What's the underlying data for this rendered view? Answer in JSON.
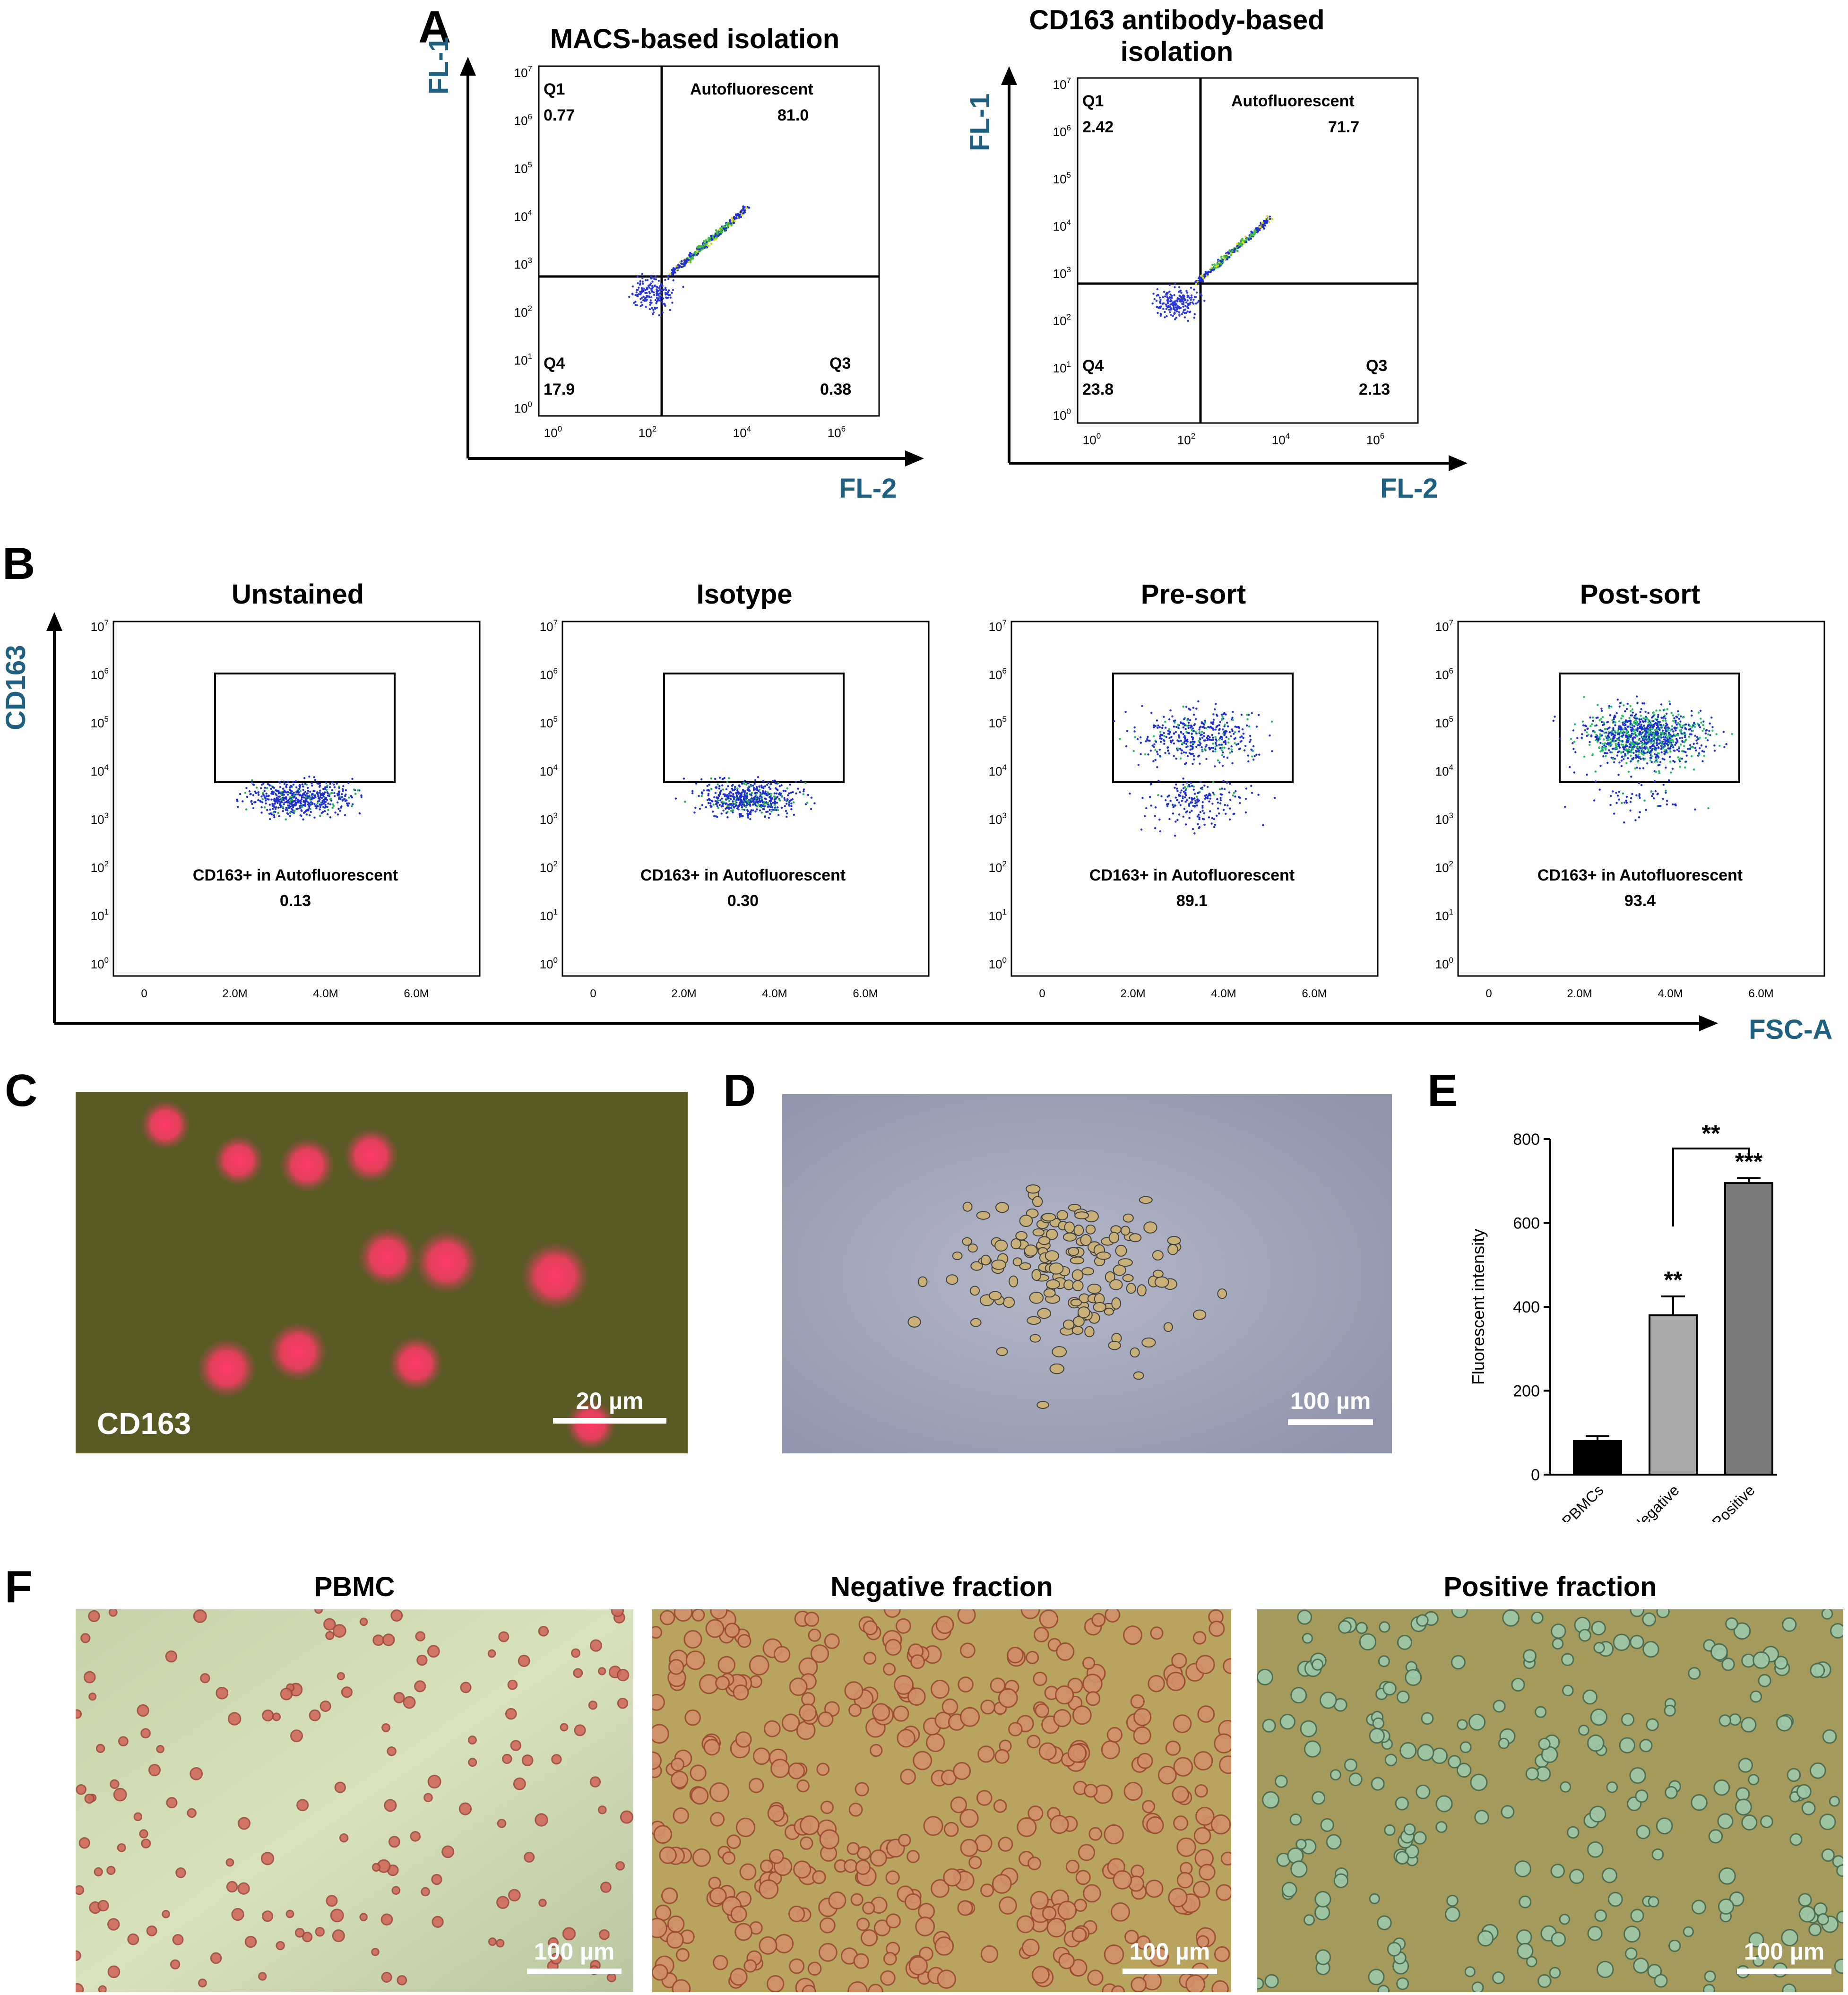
{
  "panels": {
    "A": {
      "letter": "A",
      "x_axis_name": "FL-2",
      "y_axis_name": "FL-1",
      "plots": [
        {
          "title": "MACS-based isolation",
          "q1_label": "Q1",
          "q1": "0.77",
          "q2_label": "Autofluorescent",
          "q2": "81.0",
          "q3_label": "Q3",
          "q3": "0.38",
          "q4_label": "Q4",
          "q4": "17.9"
        },
        {
          "title": "CD163 antibody-based isolation",
          "q1_label": "Q1",
          "q1": "2.42",
          "q2_label": "Autofluorescent",
          "q2": "71.7",
          "q3_label": "Q3",
          "q3": "2.13",
          "q4_label": "Q4",
          "q4": "23.8"
        }
      ],
      "x_ticks": [
        "10",
        "10",
        "10",
        "10"
      ],
      "x_tick_exps": [
        "0",
        "2",
        "4",
        "6"
      ],
      "y_ticks": [
        "10",
        "10",
        "10",
        "10",
        "10",
        "10",
        "10",
        "10"
      ],
      "y_tick_exps": [
        "7",
        "6",
        "5",
        "4",
        "3",
        "2",
        "1",
        "0"
      ]
    },
    "B": {
      "letter": "B",
      "x_axis_name": "FSC-A",
      "y_axis_name": "CD163",
      "gate_label": "CD163+ in Autofluorescent",
      "plots": [
        {
          "title": "Unstained",
          "value": "0.13"
        },
        {
          "title": "Isotype",
          "value": "0.30"
        },
        {
          "title": "Pre-sort",
          "value": "89.1"
        },
        {
          "title": "Post-sort",
          "value": "93.4"
        }
      ],
      "x_ticks": [
        "0",
        "2.0M",
        "4.0M",
        "6.0M"
      ],
      "y_ticks": [
        "10",
        "10",
        "10",
        "10",
        "10",
        "10",
        "10",
        "10"
      ],
      "y_tick_exps": [
        "7",
        "6",
        "5",
        "4",
        "3",
        "2",
        "1",
        "0"
      ]
    },
    "C": {
      "letter": "C",
      "label": "CD163",
      "scale": "20 µm"
    },
    "D": {
      "letter": "D",
      "scale": "100 µm"
    },
    "E": {
      "letter": "E"
    },
    "F": {
      "letter": "F",
      "images": [
        {
          "title": "PBMC",
          "scale": "100 µm"
        },
        {
          "title": "Negative fraction",
          "scale": "100 µm"
        },
        {
          "title": "Positive fraction",
          "scale": "100 µm"
        }
      ]
    }
  },
  "chart_data": {
    "type": "bar",
    "title": "",
    "xlabel": "",
    "ylabel": "Fluorescent intensity",
    "categories": [
      "PBMCs",
      "Negative",
      "Positive"
    ],
    "values": [
      80,
      380,
      695
    ],
    "errors": [
      12,
      45,
      12
    ],
    "colors": [
      "#000000",
      "#a9a9a9",
      "#7a7a7a"
    ],
    "ylim": [
      0,
      800
    ],
    "yticks": [
      "0",
      "200",
      "400",
      "600",
      "800"
    ],
    "bar_annotations": [
      "",
      "**",
      "***"
    ],
    "bracket": {
      "from": "Negative",
      "to": "Positive",
      "label": "**"
    }
  }
}
